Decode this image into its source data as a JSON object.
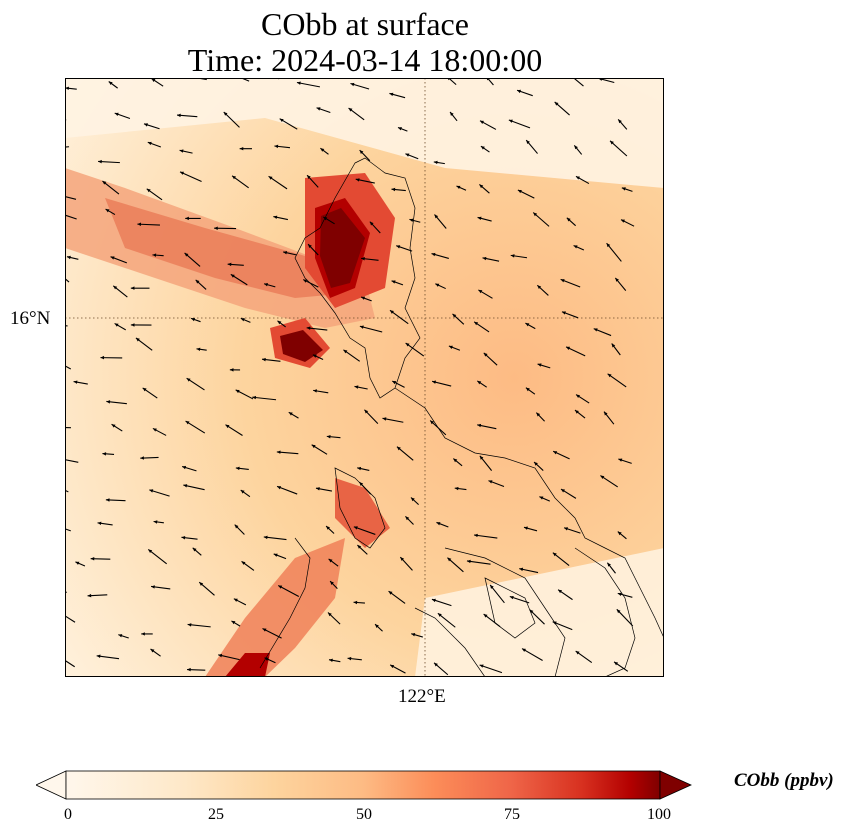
{
  "title": {
    "line1": "CObb at surface",
    "line2": "Time: 2024-03-14 18:00:00"
  },
  "map": {
    "lat_label": "16°N",
    "lon_label": "122°E",
    "colormap": "OrRd",
    "gridline_style": "dotted"
  },
  "colorbar": {
    "label": "CObb (ppbv)",
    "ticks": [
      "0",
      "25",
      "50",
      "75",
      "100"
    ],
    "min": 0,
    "max": 100,
    "extend": "both"
  },
  "colors": {
    "low": "#fff7ec",
    "mid": "#fdbb84",
    "high": "#7f0000"
  }
}
